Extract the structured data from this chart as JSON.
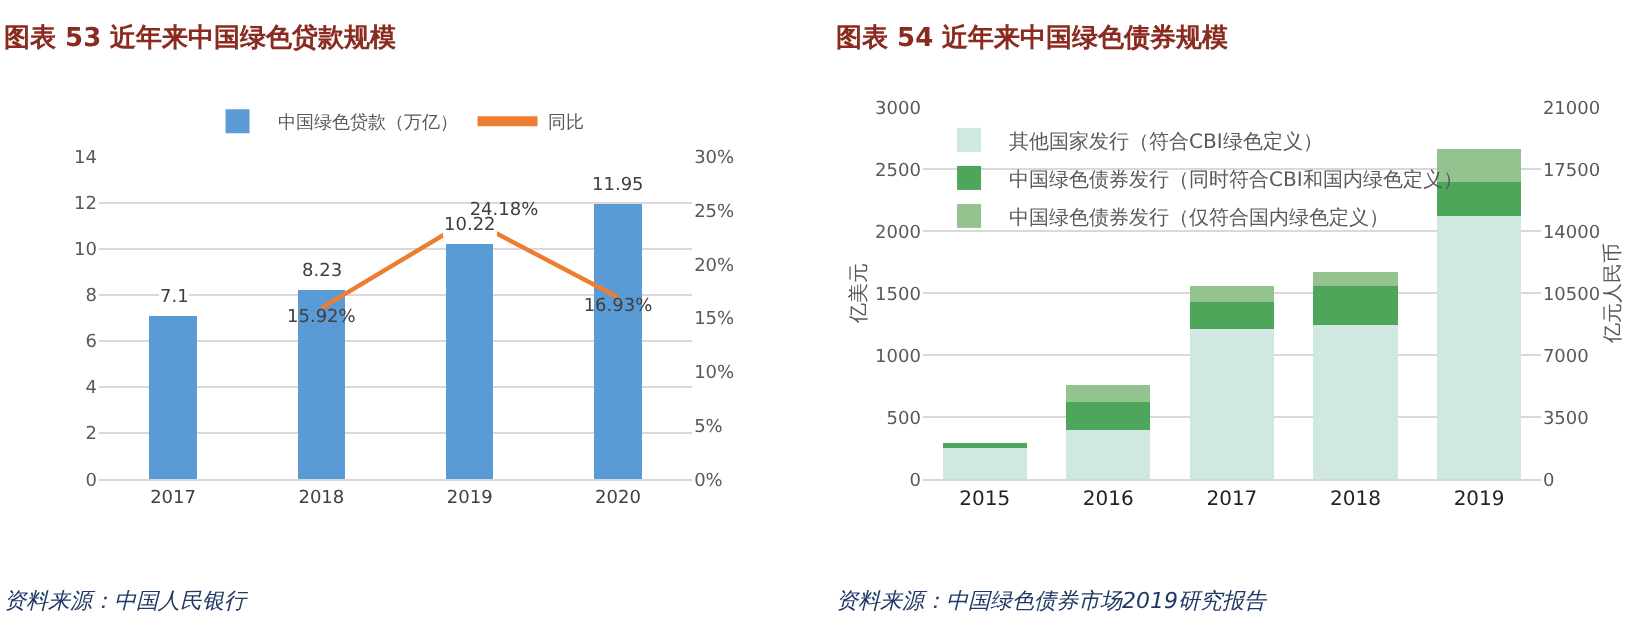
{
  "chart_data": [
    {
      "type": "bar",
      "title": "图表 53 近年来中国绿色贷款规模",
      "categories": [
        "2017",
        "2018",
        "2019",
        "2020"
      ],
      "series": [
        {
          "name": "中国绿色贷款（万亿）",
          "color": "#5b9bd5",
          "values": [
            7.1,
            8.23,
            10.22,
            11.95
          ],
          "value_labels": [
            "7.1",
            "8.23",
            "10.22",
            "11.95"
          ]
        },
        {
          "name": "同比",
          "type": "line",
          "axis": "y2",
          "color": "#ed7d31",
          "values": [
            null,
            15.92,
            24.18,
            16.93
          ],
          "value_labels": [
            null,
            "15.92%",
            "24.18%",
            "16.93%"
          ]
        }
      ],
      "ylim": [
        0,
        14
      ],
      "yticks": [
        0,
        2,
        4,
        6,
        8,
        10,
        12,
        14
      ],
      "y2lim": [
        0,
        30
      ],
      "y2ticks": [
        {
          "value": 0,
          "label": "0%"
        },
        {
          "value": 5,
          "label": "5%"
        },
        {
          "value": 10,
          "label": "10%"
        },
        {
          "value": 15,
          "label": "15%"
        },
        {
          "value": 20,
          "label": "20%"
        },
        {
          "value": 25,
          "label": "25%"
        },
        {
          "value": 30,
          "label": "30%"
        }
      ],
      "grid": "y",
      "legend": "top",
      "annotations": [
        "资料来源：中国人民银行"
      ]
    },
    {
      "type": "bar",
      "title": "图表 54 近年来中国绿色债券规模",
      "categories": [
        "2015",
        "2016",
        "2017",
        "2018",
        "2019"
      ],
      "stacked": true,
      "series": [
        {
          "name": "其他国家发行（符合CBI绿色定义）",
          "color": "#cfe8e2",
          "values": [
            250,
            400,
            1210,
            1240,
            2120
          ]
        },
        {
          "name": "中国绿色债券发行（同时符合CBI和国内绿色定义）",
          "color": "#4ea65a",
          "values": [
            40,
            220,
            220,
            320,
            280
          ]
        },
        {
          "name": "中国绿色债券发行（仅符合国内绿色定义）",
          "color": "#94c38f",
          "values": [
            0,
            140,
            130,
            110,
            260
          ]
        }
      ],
      "ylabel": "亿美元",
      "y2label": "亿元人民币",
      "ylim": [
        0,
        3000
      ],
      "yticks": [
        0,
        500,
        1000,
        1500,
        2000,
        2500,
        3000
      ],
      "y2lim": [
        0,
        21000
      ],
      "y2ticks": [
        0,
        3500,
        7000,
        10500,
        14000,
        17500,
        21000
      ],
      "grid": "y",
      "legend": "top left",
      "annotations": [
        "资料来源：中国绿色债券市场2019研究报告"
      ]
    }
  ]
}
